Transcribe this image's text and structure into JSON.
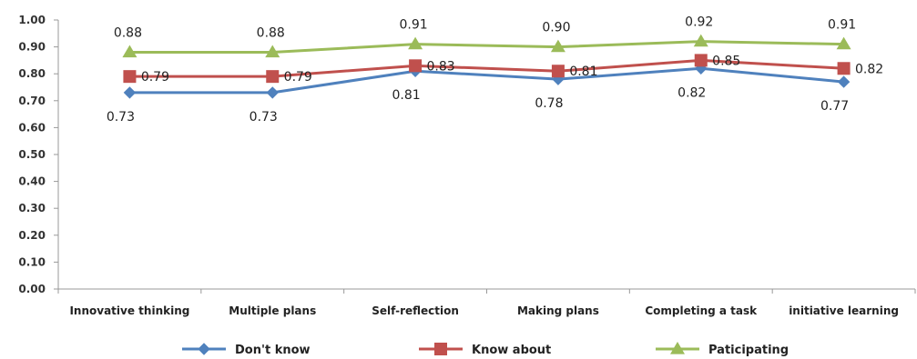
{
  "chart_data": {
    "type": "line",
    "title": "",
    "xlabel": "",
    "ylabel": "",
    "categories": [
      "Innovative thinking",
      "Multiple plans",
      "Self-reflection",
      "Making plans",
      "Completing a task",
      "initiative learning"
    ],
    "ylim": [
      0,
      1.0
    ],
    "yticks": [
      "0.00",
      "0.10",
      "0.20",
      "0.30",
      "0.40",
      "0.50",
      "0.60",
      "0.70",
      "0.80",
      "0.90",
      "1.00"
    ],
    "grid": false,
    "legend_position": "bottom",
    "series": [
      {
        "name": "Don't know",
        "values": [
          0.73,
          0.73,
          0.81,
          0.78,
          0.82,
          0.77
        ],
        "labels": [
          "0.73",
          "0.73",
          "0.81",
          "0.78",
          "0.82",
          "0.77"
        ],
        "color": "#4f81bd",
        "marker": "diamond"
      },
      {
        "name": "Know about",
        "values": [
          0.79,
          0.79,
          0.83,
          0.81,
          0.85,
          0.82
        ],
        "labels": [
          "0.79",
          "0.79",
          "0.83",
          "0.81",
          "0.85",
          "0.82"
        ],
        "color": "#c0504d",
        "marker": "square"
      },
      {
        "name": "Paticipating",
        "values": [
          0.88,
          0.88,
          0.91,
          0.9,
          0.92,
          0.91
        ],
        "labels": [
          "0.88",
          "0.88",
          "0.91",
          "0.90",
          "0.92",
          "0.91"
        ],
        "color": "#9bbb59",
        "marker": "triangle"
      }
    ]
  }
}
